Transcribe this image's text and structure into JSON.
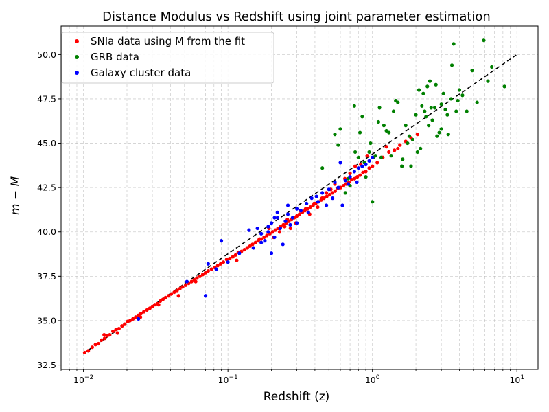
{
  "chart_data": {
    "type": "scatter",
    "title": "Distance Modulus vs Redshift using joint parameter estimation",
    "xlabel": "Redshift (z)",
    "ylabel": "m − M",
    "x_scale": "log",
    "xlim": [
      0.007,
      14
    ],
    "ylim": [
      32.25,
      51.6
    ],
    "x_ticks": [
      {
        "value": 0.01,
        "base": "10",
        "exp": "−2"
      },
      {
        "value": 0.1,
        "base": "10",
        "exp": "−1"
      },
      {
        "value": 1,
        "base": "10",
        "exp": "0"
      },
      {
        "value": 10,
        "base": "10",
        "exp": "1"
      }
    ],
    "y_ticks": [
      "32.5",
      "35.0",
      "37.5",
      "40.0",
      "42.5",
      "45.0",
      "47.5",
      "50.0"
    ],
    "grid": true,
    "legend_position": "upper-left",
    "colors": {
      "sn": "#ff0000",
      "grb": "#008000",
      "cluster": "#0000ff",
      "fit": "#000000",
      "grid": "#b0b0b0"
    },
    "model_line": {
      "x": [
        0.01,
        10
      ],
      "y": [
        33.15,
        50.0
      ],
      "style": "dashed"
    },
    "series": [
      {
        "name": "SNIa data using M from the fit",
        "color": "#ff0000",
        "x": [
          0.0102,
          0.0108,
          0.0115,
          0.0121,
          0.0127,
          0.0133,
          0.014,
          0.0146,
          0.0152,
          0.016,
          0.0168,
          0.0176,
          0.0185,
          0.0193,
          0.0202,
          0.021,
          0.022,
          0.023,
          0.024,
          0.025,
          0.0262,
          0.0275,
          0.0288,
          0.03,
          0.0312,
          0.0325,
          0.034,
          0.0355,
          0.037,
          0.0388,
          0.0405,
          0.0425,
          0.0445,
          0.0465,
          0.0485,
          0.051,
          0.0535,
          0.056,
          0.0585,
          0.061,
          0.064,
          0.067,
          0.07,
          0.073,
          0.077,
          0.081,
          0.085,
          0.089,
          0.093,
          0.098,
          0.103,
          0.108,
          0.113,
          0.118,
          0.124,
          0.13,
          0.136,
          0.142,
          0.148,
          0.155,
          0.162,
          0.17,
          0.178,
          0.186,
          0.195,
          0.204,
          0.213,
          0.222,
          0.232,
          0.242,
          0.253,
          0.264,
          0.276,
          0.288,
          0.3,
          0.313,
          0.327,
          0.341,
          0.356,
          0.372,
          0.388,
          0.405,
          0.423,
          0.442,
          0.462,
          0.483,
          0.505,
          0.528,
          0.552,
          0.577,
          0.603,
          0.63,
          0.658,
          0.688,
          0.719,
          0.752,
          0.786,
          0.822,
          0.86,
          0.9,
          0.95,
          1.0,
          1.08,
          1.18,
          1.3,
          1.42,
          1.55,
          1.7,
          1.85,
          2.05,
          0.0139,
          0.0172,
          0.0248,
          0.0331,
          0.0455,
          0.0598,
          0.0812,
          0.115,
          0.165,
          0.192,
          0.207,
          0.228,
          0.247,
          0.258,
          0.271,
          0.295,
          0.318,
          0.345,
          0.368,
          0.395,
          0.418,
          0.448,
          0.48,
          0.515,
          0.55,
          0.595,
          0.645,
          0.7,
          0.76,
          0.83,
          0.92,
          1.25,
          1.5
        ],
        "y": [
          33.2,
          33.3,
          33.5,
          33.65,
          33.7,
          33.9,
          34.0,
          34.15,
          34.2,
          34.4,
          34.5,
          34.55,
          34.7,
          34.8,
          34.95,
          35.0,
          35.1,
          35.2,
          35.3,
          35.4,
          35.5,
          35.6,
          35.7,
          35.8,
          35.9,
          35.95,
          36.1,
          36.2,
          36.3,
          36.4,
          36.5,
          36.6,
          36.7,
          36.8,
          36.9,
          37.0,
          37.1,
          37.2,
          37.3,
          37.4,
          37.5,
          37.6,
          37.7,
          37.8,
          37.9,
          38.0,
          38.1,
          38.2,
          38.3,
          38.45,
          38.5,
          38.6,
          38.7,
          38.85,
          38.9,
          39.0,
          39.1,
          39.2,
          39.3,
          39.4,
          39.5,
          39.6,
          39.7,
          39.8,
          39.9,
          40.0,
          40.1,
          40.2,
          40.3,
          40.4,
          40.5,
          40.6,
          40.7,
          40.8,
          40.9,
          41.0,
          41.1,
          41.2,
          41.3,
          41.4,
          41.5,
          41.6,
          41.7,
          41.8,
          41.9,
          42.0,
          42.1,
          42.2,
          42.3,
          42.45,
          42.5,
          42.6,
          42.7,
          42.8,
          42.95,
          43.0,
          43.1,
          43.2,
          43.35,
          43.4,
          43.6,
          43.7,
          43.9,
          44.2,
          44.5,
          44.6,
          44.9,
          45.1,
          45.3,
          45.5,
          34.2,
          34.3,
          35.2,
          35.9,
          36.4,
          37.2,
          38.0,
          38.4,
          39.6,
          40.2,
          39.7,
          40.0,
          40.3,
          40.7,
          40.2,
          40.5,
          41.2,
          41.3,
          41.0,
          41.6,
          41.4,
          41.9,
          42.2,
          42.4,
          42.7,
          42.5,
          43.0,
          43.3,
          43.7,
          43.8,
          44.3,
          44.8,
          44.7
        ]
      },
      {
        "name": "GRB data",
        "color": "#008000",
        "x": [
          0.45,
          0.55,
          0.6,
          0.65,
          0.7,
          0.75,
          0.8,
          0.85,
          0.9,
          0.95,
          1.0,
          1.05,
          1.1,
          1.15,
          1.2,
          1.3,
          1.4,
          1.5,
          1.6,
          1.7,
          1.8,
          1.9,
          2.0,
          2.1,
          2.2,
          2.3,
          2.4,
          2.5,
          2.6,
          2.7,
          2.8,
          2.9,
          3.0,
          3.1,
          3.2,
          3.35,
          3.5,
          3.65,
          3.8,
          4.0,
          4.2,
          4.5,
          4.9,
          5.3,
          5.9,
          6.3,
          6.7,
          8.2,
          0.76,
          0.82,
          0.88,
          0.97,
          1.02,
          1.12,
          1.25,
          1.35,
          1.45,
          1.62,
          1.75,
          2.05,
          2.15,
          2.25,
          2.35,
          2.45,
          2.55,
          2.75,
          3.0,
          3.3,
          3.55,
          3.9,
          1.85,
          0.58,
          0.68
        ],
        "y": [
          43.6,
          45.5,
          45.8,
          42.2,
          42.6,
          47.1,
          44.2,
          46.5,
          43.1,
          44.5,
          41.7,
          44.3,
          46.2,
          44.2,
          46.0,
          45.6,
          46.8,
          47.3,
          43.7,
          46.0,
          45.4,
          45.2,
          46.6,
          48.0,
          47.1,
          46.8,
          48.2,
          48.5,
          46.3,
          47.0,
          45.4,
          45.6,
          45.8,
          47.8,
          46.9,
          45.5,
          47.5,
          50.6,
          46.8,
          48.0,
          47.7,
          46.8,
          49.1,
          47.3,
          50.8,
          48.5,
          49.3,
          48.2,
          44.5,
          45.6,
          43.9,
          45.0,
          44.2,
          47.0,
          45.7,
          44.3,
          47.4,
          44.1,
          45.0,
          44.5,
          44.7,
          47.8,
          46.5,
          46.0,
          47.0,
          48.3,
          47.2,
          46.6,
          49.4,
          47.4,
          43.7,
          44.9,
          43.0
        ]
      },
      {
        "name": "Galaxy cluster data",
        "color": "#0000ff",
        "x": [
          0.024,
          0.052,
          0.07,
          0.073,
          0.083,
          0.09,
          0.1,
          0.12,
          0.14,
          0.15,
          0.16,
          0.17,
          0.18,
          0.19,
          0.2,
          0.21,
          0.22,
          0.23,
          0.24,
          0.25,
          0.26,
          0.27,
          0.28,
          0.3,
          0.32,
          0.35,
          0.38,
          0.41,
          0.45,
          0.5,
          0.55,
          0.6,
          0.65,
          0.7,
          0.75,
          0.8,
          0.85,
          0.9,
          0.95,
          1.0,
          0.2,
          0.22,
          0.26,
          0.3,
          0.36,
          0.42,
          0.48,
          0.53,
          0.58,
          0.62,
          0.68,
          0.78,
          0.17,
          0.19,
          0.21
        ],
        "y": [
          35.1,
          37.2,
          36.4,
          38.2,
          37.9,
          39.5,
          38.3,
          38.8,
          40.1,
          39.1,
          40.2,
          39.4,
          39.5,
          40.0,
          38.8,
          39.7,
          41.1,
          40.2,
          39.3,
          40.6,
          41.5,
          40.4,
          40.8,
          40.5,
          41.2,
          41.6,
          41.9,
          42.0,
          42.2,
          42.4,
          42.8,
          43.9,
          42.9,
          43.1,
          43.4,
          43.6,
          43.7,
          43.8,
          44.0,
          44.2,
          40.5,
          40.8,
          41.0,
          41.3,
          41.1,
          41.7,
          41.5,
          41.9,
          42.5,
          41.5,
          42.7,
          42.8,
          39.9,
          40.3,
          40.8
        ]
      }
    ]
  }
}
